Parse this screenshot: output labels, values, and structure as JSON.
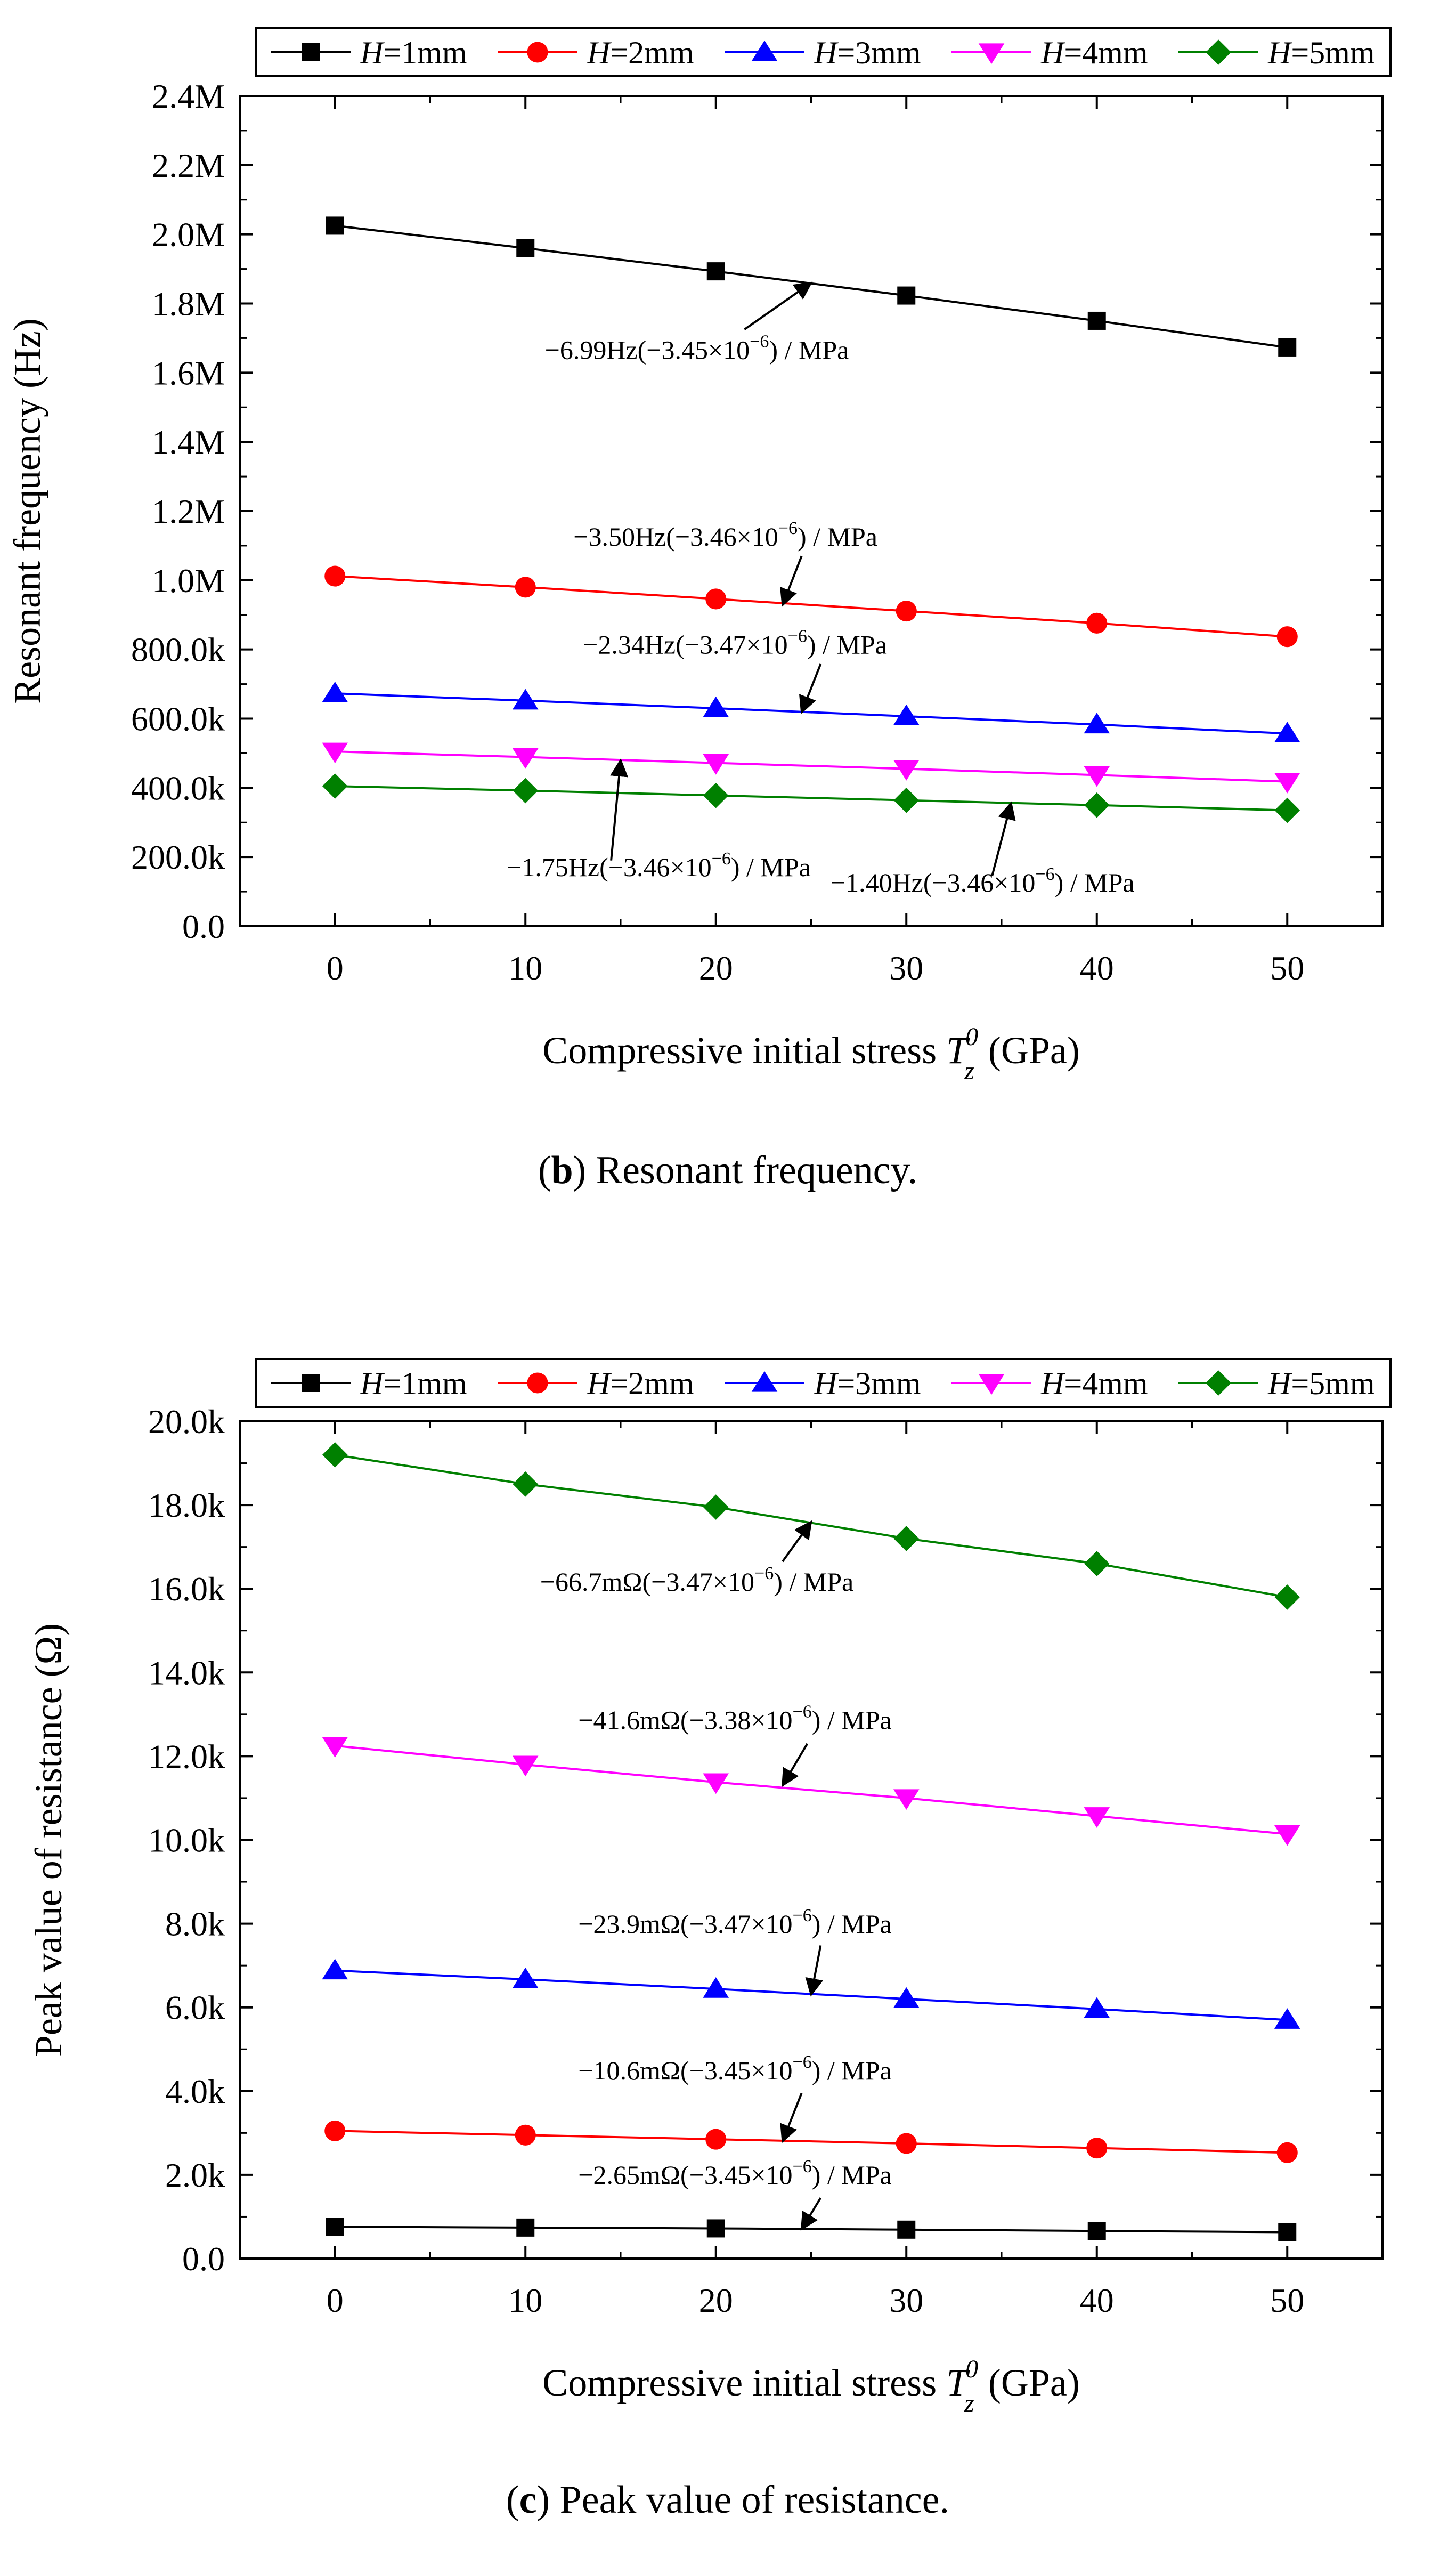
{
  "colors": {
    "H1": "#000000",
    "H2": "#ff0000",
    "H3": "#0000ff",
    "H4": "#ff00ff",
    "H5": "#008000",
    "axis": "#000000",
    "background": "#ffffff"
  },
  "chart_data": [
    {
      "type": "line",
      "panel_label": "b",
      "caption": "Resonant frequency.",
      "xlabel": "Compressive initial stress T",
      "xlabel_sup": "0",
      "xlabel_sub": "z",
      "xlabel_unit": "(GPa)",
      "ylabel": "Resonant frequency (Hz)",
      "xlim": [
        -5,
        55
      ],
      "ylim": [
        0,
        2400000
      ],
      "xticks": [
        0,
        10,
        20,
        30,
        40,
        50
      ],
      "yticks": [
        0,
        200000,
        400000,
        600000,
        800000,
        1000000,
        1200000,
        1400000,
        1600000,
        1800000,
        2000000,
        2200000,
        2400000
      ],
      "ytick_labels": [
        "0.0",
        "200.0k",
        "400.0k",
        "600.0k",
        "800.0k",
        "1.0M",
        "1.2M",
        "1.4M",
        "1.6M",
        "1.8M",
        "2.0M",
        "2.2M",
        "2.4M"
      ],
      "x": [
        0,
        10,
        20,
        30,
        40,
        50
      ],
      "series": [
        {
          "name": "H=1mm",
          "prefix": "H",
          "suffix": "=1mm",
          "color_key": "H1",
          "marker": "square",
          "values": [
            2025000,
            1960000,
            1893000,
            1823000,
            1750000,
            1673000
          ]
        },
        {
          "name": "H=2mm",
          "prefix": "H",
          "suffix": "=2mm",
          "color_key": "H2",
          "marker": "circle",
          "values": [
            1012000,
            980000,
            946000,
            911000,
            876000,
            837000
          ]
        },
        {
          "name": "H=3mm",
          "prefix": "H",
          "suffix": "=3mm",
          "color_key": "H3",
          "marker": "triangle-up",
          "values": [
            673000,
            652000,
            630000,
            607000,
            583000,
            557000
          ]
        },
        {
          "name": "H=4mm",
          "prefix": "H",
          "suffix": "=4mm",
          "color_key": "H4",
          "marker": "triangle-down",
          "values": [
            505000,
            489000,
            472000,
            455000,
            437000,
            418000
          ]
        },
        {
          "name": "H=5mm",
          "prefix": "H",
          "suffix": "=5mm",
          "color_key": "H5",
          "marker": "diamond",
          "values": [
            405000,
            392000,
            378000,
            364000,
            350000,
            335000
          ]
        }
      ],
      "annotations": [
        {
          "pre": "−6.99Hz(−3.45×10",
          "sup": "−6",
          "post": ") / MPa",
          "text_x": 19.0,
          "text_y": 1640000,
          "arrow_from": [
            21.5,
            1725000
          ],
          "arrow_to": [
            25.0,
            1860000
          ]
        },
        {
          "pre": "−3.50Hz(−3.46×10",
          "sup": "−6",
          "post": ") / MPa",
          "text_x": 20.5,
          "text_y": 1100000,
          "arrow_from": [
            24.5,
            1070000
          ],
          "arrow_to": [
            23.5,
            928000
          ]
        },
        {
          "pre": "−2.34Hz(−3.47×10",
          "sup": "−6",
          "post": ") / MPa",
          "text_x": 21.0,
          "text_y": 788000,
          "arrow_from": [
            25.5,
            758000
          ],
          "arrow_to": [
            24.5,
            618000
          ]
        },
        {
          "pre": "−1.75Hz(−3.46×10",
          "sup": "−6",
          "post": ") / MPa",
          "text_x": 17.0,
          "text_y": 145000,
          "arrow_from": [
            14.5,
            190000
          ],
          "arrow_to": [
            15.0,
            480000
          ]
        },
        {
          "pre": "−1.40Hz(−3.46×10",
          "sup": "−6",
          "post": ") / MPa",
          "text_x": 34.0,
          "text_y": 100000,
          "arrow_from": [
            34.5,
            145000
          ],
          "arrow_to": [
            35.5,
            356000
          ]
        }
      ]
    },
    {
      "type": "line",
      "panel_label": "c",
      "caption": "Peak value of resistance.",
      "xlabel": "Compressive initial stress T",
      "xlabel_sup": "0",
      "xlabel_sub": "z",
      "xlabel_unit": "(GPa)",
      "ylabel": "Peak value of resistance (Ω)",
      "xlim": [
        -5,
        55
      ],
      "ylim": [
        0,
        20000
      ],
      "xticks": [
        0,
        10,
        20,
        30,
        40,
        50
      ],
      "yticks": [
        0,
        2000,
        4000,
        6000,
        8000,
        10000,
        12000,
        14000,
        16000,
        18000,
        20000
      ],
      "ytick_labels": [
        "0.0",
        "2.0k",
        "4.0k",
        "6.0k",
        "8.0k",
        "10.0k",
        "12.0k",
        "14.0k",
        "16.0k",
        "18.0k",
        "20.0k"
      ],
      "x": [
        0,
        10,
        20,
        30,
        40,
        50
      ],
      "series": [
        {
          "name": "H=1mm",
          "prefix": "H",
          "suffix": "=1mm",
          "color_key": "H1",
          "marker": "square",
          "values": [
            760,
            740,
            720,
            690,
            660,
            630
          ]
        },
        {
          "name": "H=2mm",
          "prefix": "H",
          "suffix": "=2mm",
          "color_key": "H2",
          "marker": "circle",
          "values": [
            3050,
            2950,
            2850,
            2750,
            2640,
            2530
          ]
        },
        {
          "name": "H=3mm",
          "prefix": "H",
          "suffix": "=3mm",
          "color_key": "H3",
          "marker": "triangle-up",
          "values": [
            6880,
            6670,
            6440,
            6200,
            5960,
            5700
          ]
        },
        {
          "name": "H=4mm",
          "prefix": "H",
          "suffix": "=4mm",
          "color_key": "H4",
          "marker": "triangle-down",
          "values": [
            12250,
            11800,
            11380,
            11000,
            10570,
            10140
          ]
        },
        {
          "name": "H=5mm",
          "prefix": "H",
          "suffix": "=5mm",
          "color_key": "H5",
          "marker": "diamond",
          "values": [
            19200,
            18500,
            17950,
            17200,
            16600,
            15800
          ]
        }
      ],
      "annotations": [
        {
          "pre": "−66.7mΩ(−3.47×10",
          "sup": "−6",
          "post": ") / MPa",
          "text_x": 19.0,
          "text_y": 15950,
          "arrow_from": [
            23.5,
            16650
          ],
          "arrow_to": [
            25.0,
            17600
          ]
        },
        {
          "pre": "−41.6mΩ(−3.38×10",
          "sup": "−6",
          "post": ") / MPa",
          "text_x": 21.0,
          "text_y": 12650,
          "arrow_from": [
            24.8,
            12300
          ],
          "arrow_to": [
            23.5,
            11300
          ]
        },
        {
          "pre": "−23.9mΩ(−3.47×10",
          "sup": "−6",
          "post": ") / MPa",
          "text_x": 21.0,
          "text_y": 7780,
          "arrow_from": [
            25.5,
            7480
          ],
          "arrow_to": [
            25.0,
            6300
          ]
        },
        {
          "pre": "−10.6mΩ(−3.45×10",
          "sup": "−6",
          "post": ") / MPa",
          "text_x": 21.0,
          "text_y": 4280,
          "arrow_from": [
            24.5,
            3950
          ],
          "arrow_to": [
            23.5,
            2800
          ]
        },
        {
          "pre": "−2.65mΩ(−3.45×10",
          "sup": "−6",
          "post": ") / MPa",
          "text_x": 21.0,
          "text_y": 1780,
          "arrow_from": [
            25.5,
            1450
          ],
          "arrow_to": [
            24.5,
            700
          ]
        }
      ]
    }
  ]
}
